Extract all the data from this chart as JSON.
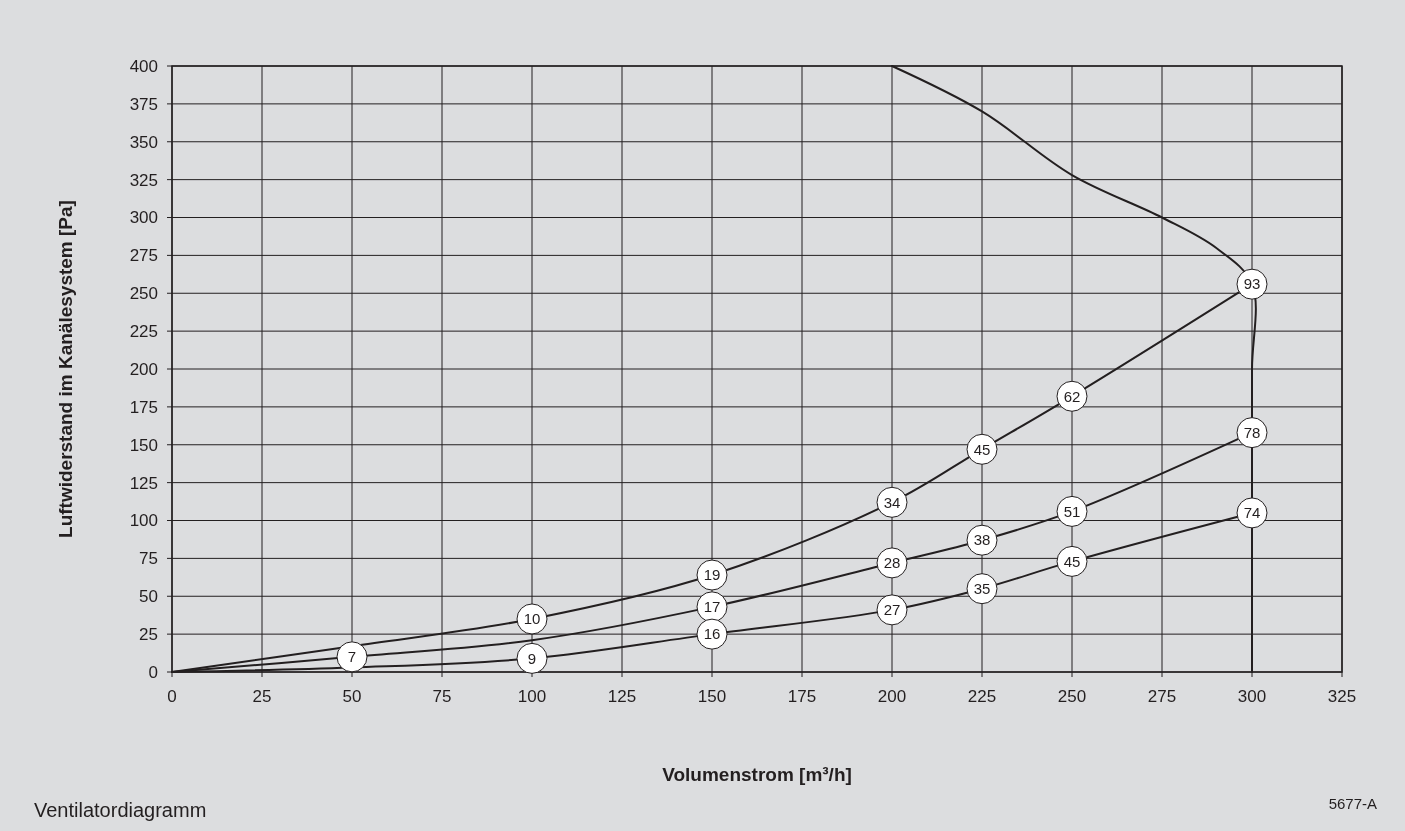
{
  "chart_data": {
    "type": "line",
    "xlabel": "Volumenstrom [m³/h]",
    "ylabel": "Luftwiderstand im Kanälesystem [Pa]",
    "annotations": [
      "Ventilatordiagramm",
      "5677-A",
      {
        "text": "10",
        "x": 100,
        "y": 35
      },
      {
        "text": "19",
        "x": 150,
        "y": 64
      },
      {
        "text": "34",
        "x": 200,
        "y": 112
      },
      {
        "text": "45",
        "x": 225,
        "y": 147
      },
      {
        "text": "62",
        "x": 250,
        "y": 182
      },
      {
        "text": "93",
        "x": 300,
        "y": 256
      },
      {
        "text": "7",
        "x": 50,
        "y": 10
      },
      {
        "text": "17",
        "x": 150,
        "y": 43
      },
      {
        "text": "28",
        "x": 200,
        "y": 72
      },
      {
        "text": "38",
        "x": 225,
        "y": 87
      },
      {
        "text": "51",
        "x": 250,
        "y": 106
      },
      {
        "text": "78",
        "x": 300,
        "y": 158
      },
      {
        "text": "9",
        "x": 100,
        "y": 9
      },
      {
        "text": "16",
        "x": 150,
        "y": 25
      },
      {
        "text": "27",
        "x": 200,
        "y": 41
      },
      {
        "text": "35",
        "x": 225,
        "y": 55
      },
      {
        "text": "45",
        "x": 250,
        "y": 73
      },
      {
        "text": "74",
        "x": 300,
        "y": 105
      }
    ],
    "xlim": [
      0,
      325
    ],
    "xticks": [
      0,
      25,
      50,
      75,
      100,
      125,
      150,
      175,
      200,
      225,
      250,
      275,
      300,
      325
    ],
    "ylim": [
      0,
      400
    ],
    "yticks": [
      0,
      25,
      50,
      75,
      100,
      125,
      150,
      175,
      200,
      225,
      250,
      275,
      300,
      325,
      350,
      375,
      400
    ],
    "grid": true,
    "series": [
      {
        "color": "#231f20",
        "x": [
          0,
          50,
          100,
          150,
          200,
          225,
          250,
          300
        ],
        "values": [
          0,
          17,
          35,
          64,
          112,
          147,
          182,
          256
        ]
      },
      {
        "color": "#231f20",
        "x": [
          0,
          50,
          100,
          150,
          200,
          225,
          250,
          300
        ],
        "values": [
          0,
          10,
          21,
          43,
          72,
          87,
          106,
          158
        ]
      },
      {
        "color": "#231f20",
        "x": [
          0,
          50,
          100,
          150,
          200,
          225,
          250,
          300
        ],
        "values": [
          0,
          3,
          9,
          25,
          41,
          55,
          73,
          105
        ]
      },
      {
        "color": "#231f20",
        "x": [
          200,
          225,
          250,
          275,
          290,
          300,
          300,
          300,
          300,
          300
        ],
        "values": [
          400,
          370,
          328,
          300,
          280,
          256,
          200,
          130,
          80,
          0
        ]
      }
    ]
  }
}
